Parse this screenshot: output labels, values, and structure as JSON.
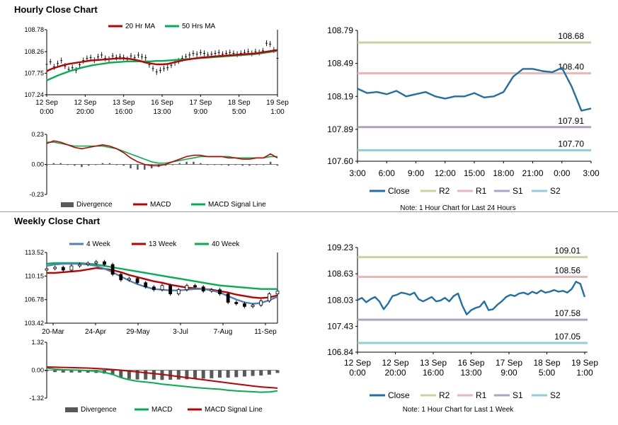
{
  "sections": {
    "hourly_title": "Hourly Close Chart",
    "weekly_title": "Weekly Close Chart"
  },
  "colors": {
    "ma20": "#c00000",
    "ma50": "#00b050",
    "w4": "#4f81bd",
    "w13": "#c00000",
    "w40": "#00b050",
    "close": "#1f6fa8",
    "r2": "#c4d79b",
    "r1": "#e6b8b7",
    "s1": "#b1a0c7",
    "s2": "#92cddc",
    "divergence": "#595959"
  },
  "chart_data": [
    {
      "id": "hourly-price",
      "type": "line",
      "title": "Hourly Close Chart",
      "legend": [
        "20 Hr MA",
        "50 Hrs MA"
      ],
      "yticks": [
        "108.78",
        "108.26",
        "107.75",
        "107.24"
      ],
      "ylim": [
        107.24,
        108.78
      ],
      "xticks": [
        [
          "12 Sep",
          "0:00"
        ],
        [
          "12 Sep",
          "20:00"
        ],
        [
          "13 Sep",
          "16:00"
        ],
        [
          "16 Sep",
          "13:00"
        ],
        [
          "17 Sep",
          "9:00"
        ],
        [
          "18 Sep",
          "5:00"
        ],
        [
          "19 Sep",
          "1:00"
        ]
      ],
      "series": [
        {
          "name": "Price",
          "values": [
            107.96,
            108.02,
            107.9,
            107.98,
            108.05,
            107.92,
            107.84,
            107.88,
            107.82,
            107.95,
            108.05,
            108.1,
            108.12,
            108.06,
            108.14,
            108.18,
            108.1,
            108.08,
            108.16,
            108.12,
            108.14,
            108.12,
            108.08,
            108.16,
            108.12,
            108.18,
            108.14,
            108.12,
            107.95,
            107.86,
            107.78,
            107.82,
            107.86,
            107.88,
            107.94,
            108.0,
            108.04,
            108.1,
            108.14,
            108.18,
            108.22,
            108.2,
            108.24,
            108.22,
            108.18,
            108.2,
            108.22,
            108.24,
            108.2,
            108.22,
            108.24,
            108.22,
            108.2,
            108.22,
            108.24,
            108.26,
            108.22,
            108.26,
            108.24,
            108.28,
            108.46,
            108.44,
            108.3,
            108.1
          ]
        },
        {
          "name": "20 Hr MA",
          "values": [
            107.8,
            107.86,
            107.9,
            107.94,
            107.97,
            107.99,
            108.01,
            108.03,
            108.05,
            108.06,
            108.07,
            108.08,
            108.09,
            108.1,
            108.1,
            108.09,
            108.07,
            108.04,
            108.0,
            107.98,
            107.96,
            107.96,
            107.97,
            108.0,
            108.03,
            108.06,
            108.08,
            108.1,
            108.12,
            108.13,
            108.14,
            108.15,
            108.16,
            108.17,
            108.18,
            108.19,
            108.2,
            108.21,
            108.22,
            108.24,
            108.26,
            108.28,
            108.3
          ]
        },
        {
          "name": "50 Hrs MA",
          "values": [
            107.58,
            107.64,
            107.7,
            107.75,
            107.8,
            107.84,
            107.88,
            107.91,
            107.94,
            107.96,
            107.98,
            108.0,
            108.01,
            108.02,
            108.03,
            108.03,
            108.03,
            108.03,
            108.03,
            108.04,
            108.04,
            108.05,
            108.06,
            108.07,
            108.08,
            108.09,
            108.1,
            108.11,
            108.12,
            108.13,
            108.14,
            108.15,
            108.16,
            108.17,
            108.18,
            108.19,
            108.2,
            108.22,
            108.24,
            108.26,
            108.28
          ]
        }
      ]
    },
    {
      "id": "hourly-macd",
      "type": "line",
      "yticks": [
        "0.23",
        "0.00",
        "-0.23"
      ],
      "ylim": [
        -0.23,
        0.23
      ],
      "legend": [
        "Divergence",
        "MACD",
        "MACD Signal Line"
      ],
      "series": [
        {
          "name": "MACD",
          "values": [
            0.16,
            0.18,
            0.17,
            0.15,
            0.13,
            0.12,
            0.13,
            0.14,
            0.15,
            0.14,
            0.12,
            0.09,
            0.05,
            0.02,
            0.0,
            -0.01,
            -0.01,
            0.0,
            0.02,
            0.04,
            0.06,
            0.07,
            0.07,
            0.06,
            0.06,
            0.06,
            0.05,
            0.05,
            0.04,
            0.04,
            0.05,
            0.05,
            0.08,
            0.05
          ]
        },
        {
          "name": "MACD Signal Line",
          "values": [
            0.17,
            0.17,
            0.16,
            0.15,
            0.14,
            0.14,
            0.14,
            0.14,
            0.14,
            0.13,
            0.12,
            0.1,
            0.08,
            0.06,
            0.04,
            0.02,
            0.01,
            0.01,
            0.02,
            0.03,
            0.04,
            0.05,
            0.06,
            0.06,
            0.06,
            0.06,
            0.06,
            0.05,
            0.05,
            0.05,
            0.05,
            0.05,
            0.06,
            0.06
          ]
        },
        {
          "name": "Divergence",
          "values": [
            -0.01,
            0.01,
            0.01,
            0.0,
            -0.01,
            -0.02,
            -0.01,
            0.0,
            0.01,
            0.01,
            0.0,
            -0.01,
            -0.03,
            -0.04,
            -0.04,
            -0.03,
            -0.02,
            -0.01,
            0.0,
            0.01,
            0.02,
            0.02,
            0.01,
            0.0,
            0.0,
            0.0,
            -0.01,
            0.0,
            -0.01,
            -0.01,
            0.0,
            0.0,
            0.02,
            -0.01
          ]
        }
      ]
    },
    {
      "id": "hourly-close-24h",
      "type": "line",
      "yticks": [
        "108.79",
        "108.49",
        "108.19",
        "107.89",
        "107.60"
      ],
      "ylim": [
        107.6,
        108.79
      ],
      "xticks": [
        "3:00",
        "6:00",
        "9:00",
        "12:00",
        "15:00",
        "18:00",
        "21:00",
        "0:00",
        "3:00"
      ],
      "levels": [
        {
          "name": "R2",
          "value": 108.68,
          "label": "108.68"
        },
        {
          "name": "R1",
          "value": 108.4,
          "label": "108.40"
        },
        {
          "name": "S1",
          "value": 107.91,
          "label": "107.91"
        },
        {
          "name": "S2",
          "value": 107.7,
          "label": "107.70"
        }
      ],
      "legend": [
        "Close",
        "R2",
        "R1",
        "S1",
        "S2"
      ],
      "note": "Note: 1 Hour Chart for Last 24 Hours",
      "series": [
        {
          "name": "Close",
          "values": [
            108.26,
            108.22,
            108.23,
            108.21,
            108.24,
            108.19,
            108.21,
            108.23,
            108.19,
            108.17,
            108.19,
            108.19,
            108.22,
            108.18,
            108.19,
            108.23,
            108.37,
            108.44,
            108.44,
            108.42,
            108.41,
            108.45,
            108.28,
            108.06,
            108.08
          ]
        }
      ]
    },
    {
      "id": "weekly-price",
      "type": "line",
      "title": "Weekly Close Chart",
      "legend": [
        "4 Week",
        "13 Week",
        "40 Week"
      ],
      "yticks": [
        "113.52",
        "110.15",
        "106.78",
        "103.42"
      ],
      "ylim": [
        103.42,
        113.52
      ],
      "xticks": [
        "20-Mar",
        "24-Apr",
        "29-May",
        "3-Jul",
        "7-Aug",
        "11-Sep"
      ],
      "series": [
        {
          "name": "Price",
          "values": [
            111.2,
            111.4,
            111.0,
            111.6,
            111.8,
            112.0,
            112.2,
            111.8,
            110.4,
            109.6,
            109.8,
            109.2,
            108.6,
            108.2,
            108.8,
            107.6,
            108.2,
            108.8,
            108.6,
            108.0,
            108.2,
            107.6,
            106.4,
            106.2,
            105.8,
            106.0,
            106.6,
            107.6,
            108.0
          ]
        },
        {
          "name": "4 Week",
          "values": [
            111.6,
            111.8,
            111.9,
            111.9,
            111.9,
            111.8,
            111.6,
            111.2,
            110.7,
            110.1,
            109.5,
            109.0,
            108.6,
            108.3,
            108.2,
            108.1,
            108.1,
            108.2,
            108.3,
            108.3,
            108.1,
            107.8,
            107.3,
            106.8,
            106.4,
            106.2,
            106.3,
            106.7,
            107.2
          ]
        },
        {
          "name": "13 Week",
          "values": [
            110.6,
            110.6,
            110.7,
            110.8,
            110.9,
            111.1,
            111.3,
            111.2,
            111.0,
            110.7,
            110.3,
            110.0,
            109.7,
            109.4,
            109.2,
            108.9,
            108.7,
            108.5,
            108.4,
            108.3,
            108.2,
            108.0,
            107.8,
            107.5,
            107.3,
            107.1,
            107.0,
            107.1,
            107.4
          ]
        },
        {
          "name": "40 Week",
          "values": [
            111.9,
            112.0,
            112.0,
            112.0,
            112.0,
            111.9,
            111.8,
            111.6,
            111.4,
            111.2,
            111.0,
            110.8,
            110.6,
            110.4,
            110.2,
            110.0,
            109.8,
            109.6,
            109.4,
            109.2,
            109.0,
            108.8,
            108.7,
            108.6,
            108.5,
            108.4,
            108.3,
            108.3,
            108.3
          ]
        }
      ]
    },
    {
      "id": "weekly-macd",
      "type": "line",
      "yticks": [
        "1.32",
        "0.00",
        "-1.32"
      ],
      "ylim": [
        -1.32,
        1.32
      ],
      "legend": [
        "Divergence",
        "MACD",
        "MACD Signal Line"
      ],
      "series": [
        {
          "name": "MACD",
          "values": [
            0.1,
            0.05,
            0.02,
            0.01,
            0.0,
            -0.02,
            -0.05,
            -0.1,
            -0.2,
            -0.35,
            -0.45,
            -0.52,
            -0.56,
            -0.6,
            -0.66,
            -0.7,
            -0.74,
            -0.78,
            -0.82,
            -0.85,
            -0.88,
            -0.9,
            -0.95,
            -0.98,
            -1.0,
            -1.02,
            -1.04,
            -1.03,
            -0.98
          ]
        },
        {
          "name": "MACD Signal Line",
          "values": [
            0.15,
            0.14,
            0.13,
            0.12,
            0.11,
            0.1,
            0.08,
            0.06,
            0.03,
            0.0,
            -0.04,
            -0.08,
            -0.12,
            -0.16,
            -0.2,
            -0.25,
            -0.3,
            -0.35,
            -0.4,
            -0.45,
            -0.5,
            -0.55,
            -0.6,
            -0.65,
            -0.7,
            -0.75,
            -0.79,
            -0.82,
            -0.85
          ]
        },
        {
          "name": "Divergence",
          "values": [
            -0.05,
            -0.09,
            -0.11,
            -0.11,
            -0.11,
            -0.12,
            -0.13,
            -0.16,
            -0.23,
            -0.35,
            -0.41,
            -0.44,
            -0.44,
            -0.44,
            -0.46,
            -0.45,
            -0.44,
            -0.43,
            -0.42,
            -0.4,
            -0.38,
            -0.35,
            -0.35,
            -0.33,
            -0.3,
            -0.27,
            -0.25,
            -0.21,
            -0.13
          ]
        }
      ]
    },
    {
      "id": "weekly-close-1w",
      "type": "line",
      "yticks": [
        "109.23",
        "108.63",
        "108.03",
        "107.43",
        "106.84"
      ],
      "ylim": [
        106.84,
        109.23
      ],
      "xticks": [
        [
          "12 Sep",
          "0:00"
        ],
        [
          "12 Sep",
          "20:00"
        ],
        [
          "13 Sep",
          "16:00"
        ],
        [
          "16 Sep",
          "13:00"
        ],
        [
          "17 Sep",
          "9:00"
        ],
        [
          "18 Sep",
          "5:00"
        ],
        [
          "19 Sep",
          "1:00"
        ]
      ],
      "levels": [
        {
          "name": "R2",
          "value": 109.01,
          "label": "109.01"
        },
        {
          "name": "R1",
          "value": 108.56,
          "label": "108.56"
        },
        {
          "name": "S1",
          "value": 107.58,
          "label": "107.58"
        },
        {
          "name": "S2",
          "value": 107.05,
          "label": "107.05"
        }
      ],
      "legend": [
        "Close",
        "R2",
        "R1",
        "S1",
        "S2"
      ],
      "note": "Note: 1 Hour Chart for Last 1 Week",
      "series": [
        {
          "name": "Close",
          "values": [
            108.03,
            108.08,
            107.98,
            108.05,
            108.1,
            108.0,
            107.82,
            107.95,
            108.12,
            108.15,
            108.2,
            108.18,
            108.15,
            108.2,
            108.05,
            108.0,
            108.05,
            108.1,
            108.0,
            108.02,
            108.08,
            108.0,
            108.12,
            108.18,
            107.9,
            107.7,
            107.8,
            107.85,
            107.88,
            108.0,
            107.8,
            107.82,
            107.92,
            108.0,
            108.1,
            108.15,
            108.12,
            108.18,
            108.2,
            108.16,
            108.22,
            108.18,
            108.25,
            108.2,
            108.22,
            108.26,
            108.22,
            108.24,
            108.2,
            108.28,
            108.45,
            108.4,
            108.1
          ]
        }
      ]
    }
  ]
}
